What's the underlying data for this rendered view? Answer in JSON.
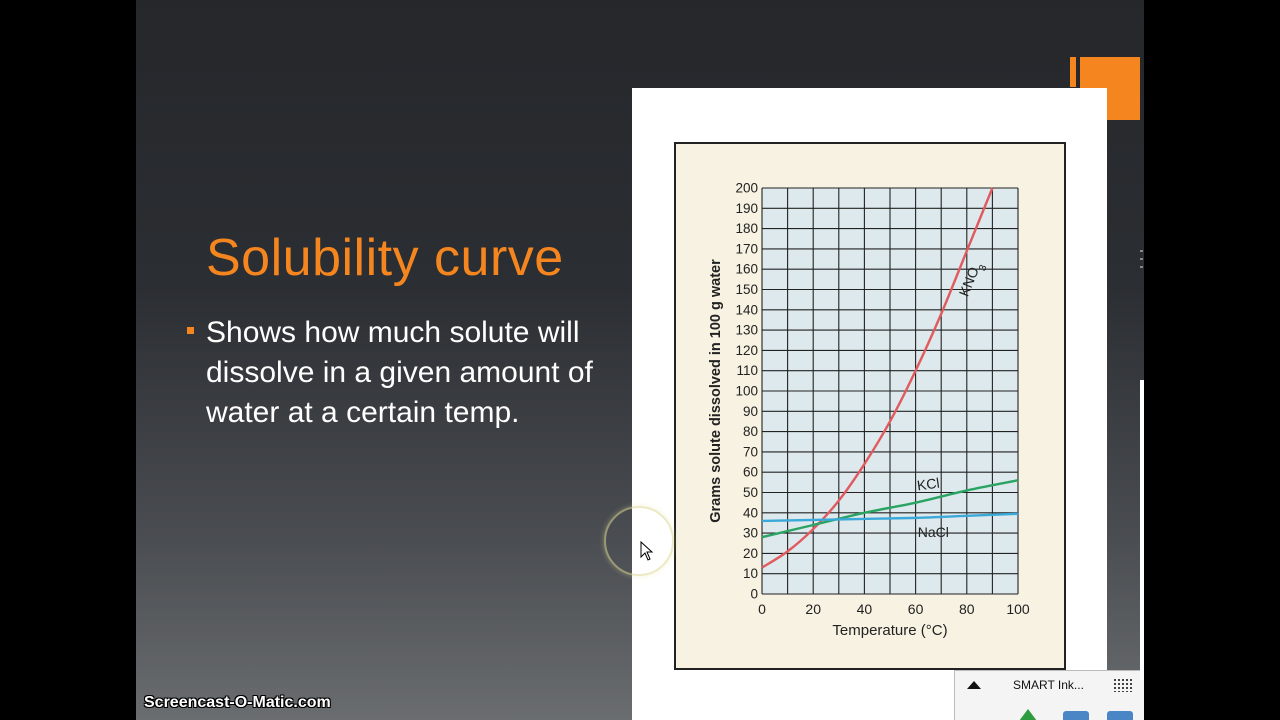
{
  "slide": {
    "title": "Solubility curve",
    "bullet": "Shows how much solute will dissolve in a given amount of water at a certain temp.",
    "colors": {
      "accent": "#f5861f",
      "text": "#ffffff",
      "chart_bg": "#f7f2e2"
    }
  },
  "chart_data": {
    "type": "line",
    "title": "",
    "xlabel": "Temperature (°C)",
    "ylabel": "Grams solute dissolved in 100 g water",
    "xlim": [
      0,
      100
    ],
    "ylim": [
      0,
      200
    ],
    "x_ticks": [
      "0",
      "20",
      "40",
      "60",
      "80",
      "100"
    ],
    "y_ticks": [
      "0",
      "10",
      "20",
      "30",
      "40",
      "50",
      "60",
      "70",
      "80",
      "90",
      "100",
      "110",
      "120",
      "130",
      "140",
      "150",
      "160",
      "170",
      "180",
      "190",
      "200"
    ],
    "grid": true,
    "series": [
      {
        "name": "KNO3",
        "color": "#e05a5e",
        "x": [
          0,
          10,
          20,
          30,
          40,
          50,
          60,
          70,
          80,
          90
        ],
        "y": [
          13,
          21,
          32,
          46,
          64,
          85,
          110,
          138,
          169,
          200
        ]
      },
      {
        "name": "KCl",
        "color": "#2aa462",
        "x": [
          0,
          20,
          40,
          60,
          80,
          100
        ],
        "y": [
          28,
          34,
          40,
          45,
          51,
          56
        ]
      },
      {
        "name": "NaCl",
        "color": "#3aa8d8",
        "x": [
          0,
          20,
          40,
          60,
          80,
          100
        ],
        "y": [
          36,
          36.5,
          37,
          37.5,
          38.5,
          39.5
        ]
      }
    ]
  },
  "smart_ink": {
    "label": "SMART Ink..."
  },
  "watermark": "Screencast-O-Matic.com"
}
